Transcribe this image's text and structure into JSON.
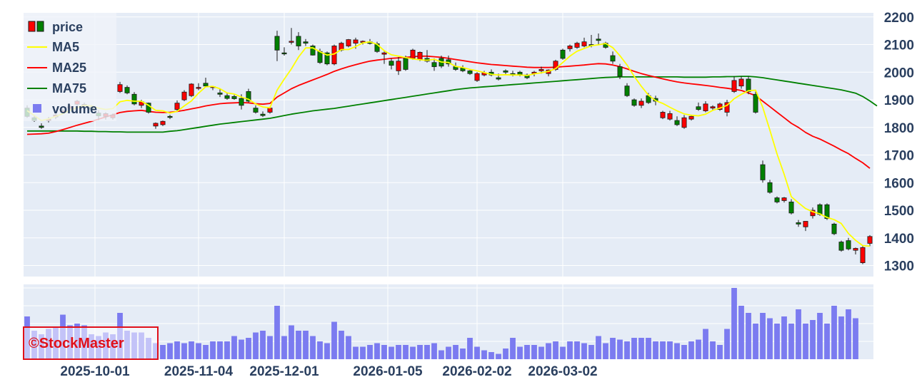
{
  "colors": {
    "plot_bg": "#e5ecf6",
    "grid": "#ffffff",
    "axis_text": "#2a3f5f",
    "up_fill": "#ff0000",
    "down_fill": "#008000",
    "candle_line": "#1a1a1a",
    "ma5": "#ffff00",
    "ma25": "#ff0000",
    "ma75": "#008000",
    "volume": "#7b7bf0",
    "watermark": "#e0101a"
  },
  "legend": {
    "price": "price",
    "ma5": "MA5",
    "ma25": "MA25",
    "ma75": "MA75",
    "volume": "volume"
  },
  "watermark": "©StockMaster",
  "chart_data": [
    {
      "type": "candlestick",
      "series_names": [
        "price",
        "MA5",
        "MA25",
        "MA75"
      ],
      "ylim": [
        1260,
        2215
      ],
      "yticks": [
        1300,
        1400,
        1500,
        1600,
        1700,
        1800,
        1900,
        2000,
        2100,
        2200
      ],
      "xtick_labels": [
        "2025-10-01",
        "2025-11-04",
        "2025-12-01",
        "2026-01-05",
        "2026-02-02",
        "2026-03-02"
      ],
      "xtick_index": [
        9.5,
        24,
        36,
        50.5,
        63,
        75
      ],
      "candles": [
        [
          1870,
          1880,
          1835,
          1840
        ],
        [
          1835,
          1845,
          1820,
          1825
        ],
        [
          1805,
          1815,
          1795,
          1800
        ],
        [
          1825,
          1838,
          1818,
          1830
        ],
        [
          1838,
          1852,
          1830,
          1845
        ],
        [
          1856,
          1868,
          1848,
          1860
        ],
        [
          1870,
          1880,
          1862,
          1875
        ],
        [
          1884,
          1900,
          1876,
          1895
        ],
        [
          1878,
          1890,
          1870,
          1883
        ],
        [
          1872,
          1880,
          1860,
          1866
        ],
        [
          1852,
          1862,
          1826,
          1842
        ],
        [
          1840,
          1855,
          1828,
          1850
        ],
        [
          1835,
          1850,
          1828,
          1845
        ],
        [
          1930,
          1965,
          1925,
          1955
        ],
        [
          1945,
          1952,
          1920,
          1925
        ],
        [
          1920,
          1928,
          1880,
          1885
        ],
        [
          1880,
          1900,
          1870,
          1893
        ],
        [
          1888,
          1890,
          1850,
          1855
        ],
        [
          1805,
          1818,
          1795,
          1815
        ],
        [
          1810,
          1825,
          1805,
          1822
        ],
        [
          1840,
          1846,
          1830,
          1838
        ],
        [
          1865,
          1898,
          1860,
          1888
        ],
        [
          1900,
          1935,
          1895,
          1928
        ],
        [
          1915,
          1960,
          1910,
          1957
        ],
        [
          1942,
          1960,
          1935,
          1945
        ],
        [
          1960,
          1980,
          1950,
          1950
        ],
        [
          1945,
          1950,
          1935,
          1948
        ],
        [
          1925,
          1940,
          1910,
          1920
        ],
        [
          1915,
          1925,
          1900,
          1905
        ],
        [
          1912,
          1918,
          1900,
          1904
        ],
        [
          1905,
          1920,
          1865,
          1880
        ],
        [
          1930,
          1940,
          1890,
          1895
        ],
        [
          1870,
          1880,
          1850,
          1855
        ],
        [
          1848,
          1858,
          1838,
          1843
        ],
        [
          1855,
          1875,
          1850,
          1870
        ],
        [
          2130,
          2150,
          2040,
          2080
        ],
        [
          2070,
          2090,
          2060,
          2068
        ],
        [
          2110,
          2160,
          2100,
          2112
        ],
        [
          2130,
          2145,
          2080,
          2095
        ],
        [
          2110,
          2120,
          2095,
          2105
        ],
        [
          2095,
          2100,
          2060,
          2062
        ],
        [
          2075,
          2085,
          2030,
          2035
        ],
        [
          2070,
          2075,
          2025,
          2030
        ],
        [
          2030,
          2100,
          2025,
          2095
        ],
        [
          2080,
          2110,
          2075,
          2105
        ],
        [
          2095,
          2120,
          2090,
          2118
        ],
        [
          2105,
          2125,
          2085,
          2117
        ],
        [
          2108,
          2115,
          2100,
          2112
        ],
        [
          2110,
          2120,
          2100,
          2104
        ],
        [
          2103,
          2110,
          2070,
          2075
        ],
        [
          2065,
          2075,
          2030,
          2070
        ],
        [
          2040,
          2050,
          2010,
          2025
        ],
        [
          2005,
          2055,
          1990,
          2040
        ],
        [
          2050,
          2060,
          2005,
          2010
        ],
        [
          2050,
          2085,
          2045,
          2080
        ],
        [
          2045,
          2075,
          2040,
          2072
        ],
        [
          2050,
          2080,
          2035,
          2040
        ],
        [
          2035,
          2050,
          2005,
          2020
        ],
        [
          2050,
          2060,
          2015,
          2022
        ],
        [
          2045,
          2060,
          2020,
          2030
        ],
        [
          2020,
          2035,
          2005,
          2010
        ],
        [
          2015,
          2025,
          2000,
          2005
        ],
        [
          2005,
          2010,
          1990,
          1995
        ],
        [
          1970,
          2000,
          1965,
          1995
        ],
        [
          1990,
          2005,
          1985,
          1998
        ],
        [
          2000,
          2010,
          1985,
          1990
        ],
        [
          1980,
          1995,
          1970,
          1975
        ],
        [
          2005,
          2010,
          1990,
          2000
        ],
        [
          1995,
          2005,
          1985,
          1990
        ],
        [
          2000,
          2005,
          1985,
          1992
        ],
        [
          1990,
          1995,
          1975,
          1980
        ],
        [
          1995,
          2005,
          1985,
          2000
        ],
        [
          2005,
          2020,
          1995,
          2010
        ],
        [
          1995,
          2010,
          1985,
          2008
        ],
        [
          2010,
          2045,
          2005,
          2040
        ],
        [
          2080,
          2085,
          2045,
          2050
        ],
        [
          2085,
          2100,
          2075,
          2095
        ],
        [
          2090,
          2110,
          2085,
          2105
        ],
        [
          2095,
          2125,
          2090,
          2110
        ],
        [
          2100,
          2135,
          2090,
          2098
        ],
        [
          2120,
          2140,
          2100,
          2115
        ],
        [
          2105,
          2110,
          2085,
          2090
        ],
        [
          2060,
          2075,
          2030,
          2040
        ],
        [
          2020,
          2030,
          1975,
          1985
        ],
        [
          1950,
          1960,
          1910,
          1915
        ],
        [
          1900,
          1905,
          1875,
          1880
        ],
        [
          1880,
          1905,
          1870,
          1895
        ],
        [
          1915,
          1925,
          1885,
          1890
        ],
        [
          1905,
          1915,
          1880,
          1895
        ],
        [
          1835,
          1860,
          1830,
          1855
        ],
        [
          1830,
          1860,
          1825,
          1850
        ],
        [
          1825,
          1840,
          1805,
          1810
        ],
        [
          1800,
          1845,
          1795,
          1835
        ],
        [
          1830,
          1845,
          1825,
          1840
        ],
        [
          1875,
          1890,
          1860,
          1865
        ],
        [
          1860,
          1895,
          1855,
          1885
        ],
        [
          1870,
          1880,
          1860,
          1875
        ],
        [
          1865,
          1890,
          1860,
          1885
        ],
        [
          1855,
          1900,
          1840,
          1890
        ],
        [
          1930,
          1985,
          1925,
          1970
        ],
        [
          1950,
          1985,
          1940,
          1975
        ],
        [
          1975,
          1985,
          1920,
          1930
        ],
        [
          1920,
          1930,
          1850,
          1855
        ],
        [
          1665,
          1680,
          1600,
          1610
        ],
        [
          1600,
          1610,
          1560,
          1565
        ],
        [
          1545,
          1550,
          1525,
          1530
        ],
        [
          1535,
          1548,
          1528,
          1545
        ],
        [
          1530,
          1540,
          1485,
          1490
        ],
        [
          1455,
          1465,
          1440,
          1450
        ],
        [
          1440,
          1460,
          1425,
          1460
        ],
        [
          1480,
          1510,
          1470,
          1500
        ],
        [
          1520,
          1525,
          1480,
          1485
        ],
        [
          1520,
          1525,
          1465,
          1470
        ],
        [
          1450,
          1455,
          1410,
          1415
        ],
        [
          1385,
          1390,
          1350,
          1355
        ],
        [
          1390,
          1400,
          1355,
          1360
        ],
        [
          1355,
          1365,
          1340,
          1362
        ],
        [
          1310,
          1370,
          1305,
          1365
        ],
        [
          1380,
          1410,
          1370,
          1405
        ]
      ],
      "ma5": [
        1861,
        1843,
        1825,
        1831,
        1840,
        1850,
        1862,
        1872,
        1880,
        1878,
        1870,
        1865,
        1868,
        1893,
        1898,
        1895,
        1895,
        1880,
        1862,
        1860,
        1852,
        1858,
        1878,
        1896,
        1924,
        1947,
        1949,
        1940,
        1925,
        1921,
        1910,
        1902,
        1885,
        1874,
        1871,
        1935,
        1975,
        2012,
        2055,
        2088,
        2088,
        2074,
        2062,
        2066,
        2082,
        2082,
        2093,
        2106,
        2110,
        2101,
        2078,
        2063,
        2058,
        2053,
        2048,
        2045,
        2043,
        2047,
        2037,
        2035,
        2021,
        2017,
        2010,
        2005,
        1999,
        1992,
        1990,
        1991,
        1990,
        1990,
        1988,
        1994,
        1998,
        2003,
        2013,
        2035,
        2058,
        2076,
        2086,
        2096,
        2099,
        2104,
        2089,
        2060,
        2026,
        1985,
        1949,
        1917,
        1897,
        1887,
        1873,
        1860,
        1849,
        1844,
        1842,
        1848,
        1862,
        1870,
        1880,
        1904,
        1920,
        1933,
        1935,
        1873,
        1790,
        1704,
        1630,
        1549,
        1527,
        1506,
        1495,
        1487,
        1474,
        1466,
        1452,
        1416,
        1391,
        1372,
        1370
      ],
      "ma25": [
        1775,
        1776,
        1777,
        1779,
        1785,
        1792,
        1800,
        1808,
        1815,
        1822,
        1830,
        1838,
        1846,
        1854,
        1858,
        1860,
        1862,
        1858,
        1855,
        1854,
        1855,
        1858,
        1862,
        1867,
        1872,
        1878,
        1882,
        1886,
        1888,
        1889,
        1890,
        1889,
        1886,
        1884,
        1887,
        1910,
        1925,
        1940,
        1952,
        1962,
        1972,
        1982,
        1992,
        2003,
        2012,
        2020,
        2027,
        2034,
        2040,
        2044,
        2047,
        2050,
        2052,
        2054,
        2056,
        2058,
        2058,
        2056,
        2054,
        2050,
        2046,
        2042,
        2038,
        2034,
        2031,
        2028,
        2026,
        2024,
        2022,
        2020,
        2018,
        2017,
        2017,
        2017,
        2018,
        2020,
        2022,
        2024,
        2026,
        2029,
        2031,
        2030,
        2026,
        2020,
        2012,
        2003,
        1995,
        1988,
        1982,
        1976,
        1970,
        1965,
        1961,
        1958,
        1955,
        1952,
        1949,
        1945,
        1942,
        1938,
        1934,
        1925,
        1915,
        1895,
        1875,
        1855,
        1835,
        1815,
        1800,
        1782,
        1768,
        1758,
        1745,
        1732,
        1718,
        1705,
        1688,
        1672,
        1652
      ],
      "ma75": [
        1787,
        1787,
        1787,
        1787,
        1787,
        1787,
        1787,
        1787,
        1786,
        1786,
        1785,
        1785,
        1784,
        1784,
        1783,
        1783,
        1783,
        1783,
        1783,
        1783,
        1786,
        1788,
        1792,
        1796,
        1800,
        1804,
        1808,
        1812,
        1815,
        1818,
        1821,
        1824,
        1827,
        1830,
        1833,
        1838,
        1843,
        1848,
        1852,
        1856,
        1860,
        1863,
        1866,
        1869,
        1873,
        1877,
        1881,
        1885,
        1889,
        1893,
        1897,
        1901,
        1905,
        1909,
        1913,
        1917,
        1921,
        1925,
        1929,
        1933,
        1937,
        1940,
        1943,
        1945,
        1947,
        1949,
        1951,
        1953,
        1955,
        1957,
        1959,
        1961,
        1963,
        1965,
        1967,
        1969,
        1971,
        1973,
        1975,
        1977,
        1979,
        1981,
        1982,
        1983,
        1983,
        1983,
        1983,
        1983,
        1983,
        1983,
        1983,
        1983,
        1982,
        1982,
        1982,
        1982,
        1983,
        1983,
        1984,
        1984,
        1985,
        1985,
        1983,
        1980,
        1976,
        1972,
        1968,
        1964,
        1960,
        1956,
        1952,
        1948,
        1944,
        1940,
        1936,
        1930,
        1924,
        1912,
        1896,
        1878
      ]
    },
    {
      "type": "bar",
      "series_name": "volume",
      "ylim": [
        0,
        4.2
      ],
      "values": [
        2.4,
        1.6,
        1.4,
        1.7,
        1.8,
        2.5,
        1.9,
        2.0,
        1.9,
        1.4,
        1.3,
        1.5,
        1.4,
        2.6,
        1.6,
        1.5,
        1.5,
        1.2,
        0.9,
        0.8,
        0.9,
        1.0,
        0.9,
        1.0,
        0.9,
        0.8,
        1.0,
        1.0,
        1.0,
        1.3,
        1.1,
        1.2,
        1.5,
        1.6,
        1.3,
        3.0,
        1.3,
        1.9,
        1.6,
        1.6,
        1.3,
        1.0,
        0.9,
        2.1,
        1.6,
        1.3,
        0.7,
        0.7,
        0.8,
        0.9,
        0.8,
        0.7,
        0.8,
        0.8,
        0.7,
        0.8,
        0.8,
        0.9,
        0.5,
        0.7,
        0.8,
        0.6,
        1.2,
        0.7,
        0.5,
        0.4,
        0.3,
        0.6,
        1.2,
        0.7,
        0.8,
        0.8,
        0.7,
        0.9,
        1.0,
        0.7,
        1.0,
        1.0,
        0.9,
        0.8,
        1.3,
        0.9,
        1.2,
        1.1,
        1.0,
        1.2,
        1.2,
        1.2,
        1.0,
        1.0,
        1.0,
        0.9,
        0.8,
        1.0,
        1.1,
        1.7,
        1.0,
        0.8,
        1.7,
        4.0,
        3.0,
        2.6,
        2.0,
        2.6,
        2.3,
        2.0,
        2.4,
        2.0,
        2.8,
        2.0,
        2.2,
        2.6,
        2.0,
        3.0,
        2.4,
        2.8,
        2.3
      ]
    }
  ]
}
